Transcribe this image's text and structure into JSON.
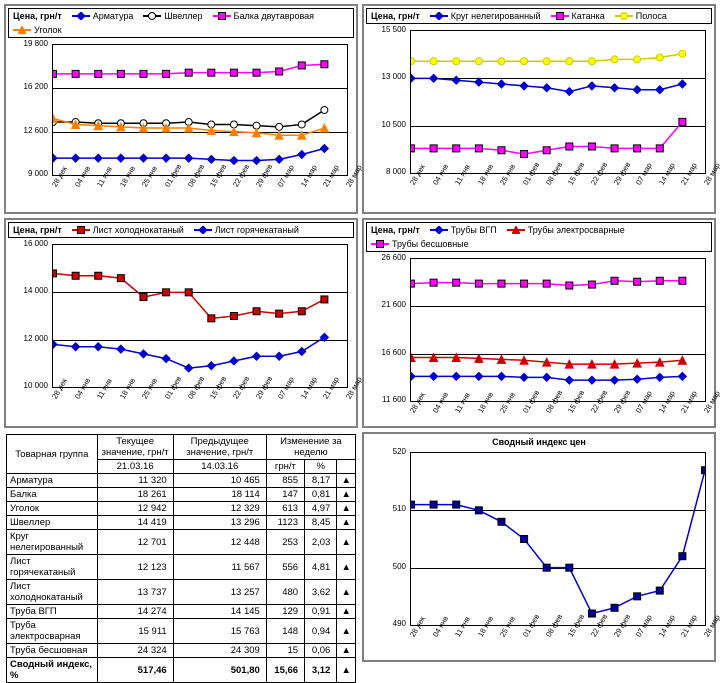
{
  "axis_label": "Цена, грн/т",
  "xlabels": [
    "28 дек",
    "04 янв",
    "11 янв",
    "18 янв",
    "25 янв",
    "01 фев",
    "08 фев",
    "15 фев",
    "22 фев",
    "29 фев",
    "07 мар",
    "14 мар",
    "21 мар",
    "28 мар"
  ],
  "charts": {
    "c1": {
      "ylim": [
        9000,
        19800
      ],
      "ystep": 3600,
      "legend_cols": 2,
      "series": [
        {
          "name": "Арматура",
          "color": "#0000cc",
          "marker": "diamond",
          "mfill": "#0000cc",
          "y": [
            10400,
            10400,
            10400,
            10400,
            10400,
            10400,
            10400,
            10300,
            10200,
            10200,
            10300,
            10700,
            11200
          ]
        },
        {
          "name": "Швеллер",
          "color": "#000000",
          "marker": "circle",
          "mfill": "#ffffff",
          "y": [
            13400,
            13400,
            13300,
            13300,
            13300,
            13300,
            13400,
            13200,
            13200,
            13100,
            13000,
            13200,
            14400
          ]
        },
        {
          "name": "Балка двутавровая",
          "color": "#ff00ff",
          "marker": "square",
          "mfill": "#ff00ff",
          "y": [
            17400,
            17400,
            17400,
            17400,
            17400,
            17400,
            17500,
            17500,
            17500,
            17500,
            17600,
            18100,
            18200
          ]
        },
        {
          "name": "Уголок",
          "color": "#ff8000",
          "marker": "triangle",
          "mfill": "#ff8000",
          "y": [
            13700,
            13200,
            13100,
            13000,
            12900,
            12900,
            12900,
            12700,
            12600,
            12500,
            12300,
            12300,
            12900
          ]
        }
      ]
    },
    "c2": {
      "ylim": [
        8000,
        15500
      ],
      "ystep": 2500,
      "legend_cols": 3,
      "series": [
        {
          "name": "Круг нелегированный",
          "color": "#0000cc",
          "marker": "diamond",
          "mfill": "#0000cc",
          "y": [
            13000,
            13000,
            12900,
            12800,
            12700,
            12600,
            12500,
            12300,
            12600,
            12500,
            12400,
            12400,
            12700
          ]
        },
        {
          "name": "Катанка",
          "color": "#ff00ff",
          "marker": "square",
          "mfill": "#ff00ff",
          "y": [
            9300,
            9300,
            9300,
            9300,
            9200,
            9000,
            9200,
            9400,
            9400,
            9300,
            9300,
            9300,
            10700
          ]
        },
        {
          "name": "Полоса",
          "color": "#cccc00",
          "marker": "circle",
          "mfill": "#ffff00",
          "y": [
            13900,
            13900,
            13900,
            13900,
            13900,
            13900,
            13900,
            13900,
            13900,
            14000,
            14000,
            14100,
            14300
          ]
        }
      ]
    },
    "c3": {
      "ylim": [
        10000,
        16000
      ],
      "ystep": 2000,
      "legend_cols": 2,
      "series": [
        {
          "name": "Лист холоднокатаный",
          "color": "#cc0000",
          "marker": "square",
          "mfill": "#cc0000",
          "y": [
            14800,
            14700,
            14700,
            14600,
            13800,
            14000,
            14000,
            12900,
            13000,
            13200,
            13100,
            13200,
            13700
          ]
        },
        {
          "name": "Лист горячекатаный",
          "color": "#0000cc",
          "marker": "diamond",
          "mfill": "#0000cc",
          "y": [
            11800,
            11700,
            11700,
            11600,
            11400,
            11200,
            10800,
            10900,
            11100,
            11300,
            11300,
            11500,
            12100
          ]
        }
      ]
    },
    "c4": {
      "ylim": [
        11600,
        26600
      ],
      "ystep": 5000,
      "legend_cols": 3,
      "series": [
        {
          "name": "Трубы ВГП",
          "color": "#0000cc",
          "marker": "diamond",
          "mfill": "#0000cc",
          "y": [
            14200,
            14200,
            14200,
            14200,
            14200,
            14100,
            14100,
            13800,
            13800,
            13800,
            13900,
            14100,
            14200
          ]
        },
        {
          "name": "Трубы электросварные",
          "color": "#cc0000",
          "marker": "triangle",
          "mfill": "#cc0000",
          "y": [
            16200,
            16200,
            16200,
            16100,
            16000,
            15900,
            15700,
            15500,
            15500,
            15500,
            15600,
            15700,
            15900
          ]
        },
        {
          "name": "Трубы бесшовные",
          "color": "#ff00ff",
          "marker": "square",
          "mfill": "#ff00ff",
          "y": [
            24000,
            24100,
            24100,
            24000,
            24000,
            24000,
            24000,
            23800,
            23900,
            24300,
            24200,
            24300,
            24300
          ]
        }
      ]
    },
    "c5": {
      "title": "Сводный индекс цен",
      "ylim": [
        490,
        520
      ],
      "ystep": 10,
      "series": [
        {
          "name": "Индекс",
          "color": "#0000cc",
          "marker": "square",
          "mfill": "#000099",
          "y": [
            511,
            511,
            511,
            510,
            508,
            505,
            500,
            500,
            492,
            493,
            495,
            496,
            502,
            517
          ]
        }
      ]
    }
  },
  "table": {
    "headers": {
      "group": "Товарная группа",
      "cur": "Текущее значение, грн/т",
      "prev": "Предыдущее значение, грн/т",
      "chg": "Изменение за неделю",
      "d1": "21.03.16",
      "d2": "14.03.16",
      "u1": "грн/т",
      "u2": "%"
    },
    "rows": [
      [
        "Арматура",
        "11 320",
        "10 465",
        "855",
        "8,17",
        "▲"
      ],
      [
        "Балка",
        "18 261",
        "18 114",
        "147",
        "0,81",
        "▲"
      ],
      [
        "Уголок",
        "12 942",
        "12 329",
        "613",
        "4,97",
        "▲"
      ],
      [
        "Швеллер",
        "14 419",
        "13 296",
        "1123",
        "8,45",
        "▲"
      ],
      [
        "Круг нелегированный",
        "12 701",
        "12 448",
        "253",
        "2,03",
        "▲"
      ],
      [
        "Лист горячекатаный",
        "12 123",
        "11 567",
        "556",
        "4,81",
        "▲"
      ],
      [
        "Лист холоднокатаный",
        "13 737",
        "13 257",
        "480",
        "3,62",
        "▲"
      ],
      [
        "Труба ВГП",
        "14 274",
        "14 145",
        "129",
        "0,91",
        "▲"
      ],
      [
        "Труба электросварная",
        "15 911",
        "15 763",
        "148",
        "0,94",
        "▲"
      ],
      [
        "Труба бесшовная",
        "24 324",
        "24 309",
        "15",
        "0,06",
        "▲"
      ]
    ],
    "footer": [
      "Сводный индекс, %",
      "517,46",
      "501,80",
      "15,66",
      "3,12",
      "▲"
    ]
  }
}
